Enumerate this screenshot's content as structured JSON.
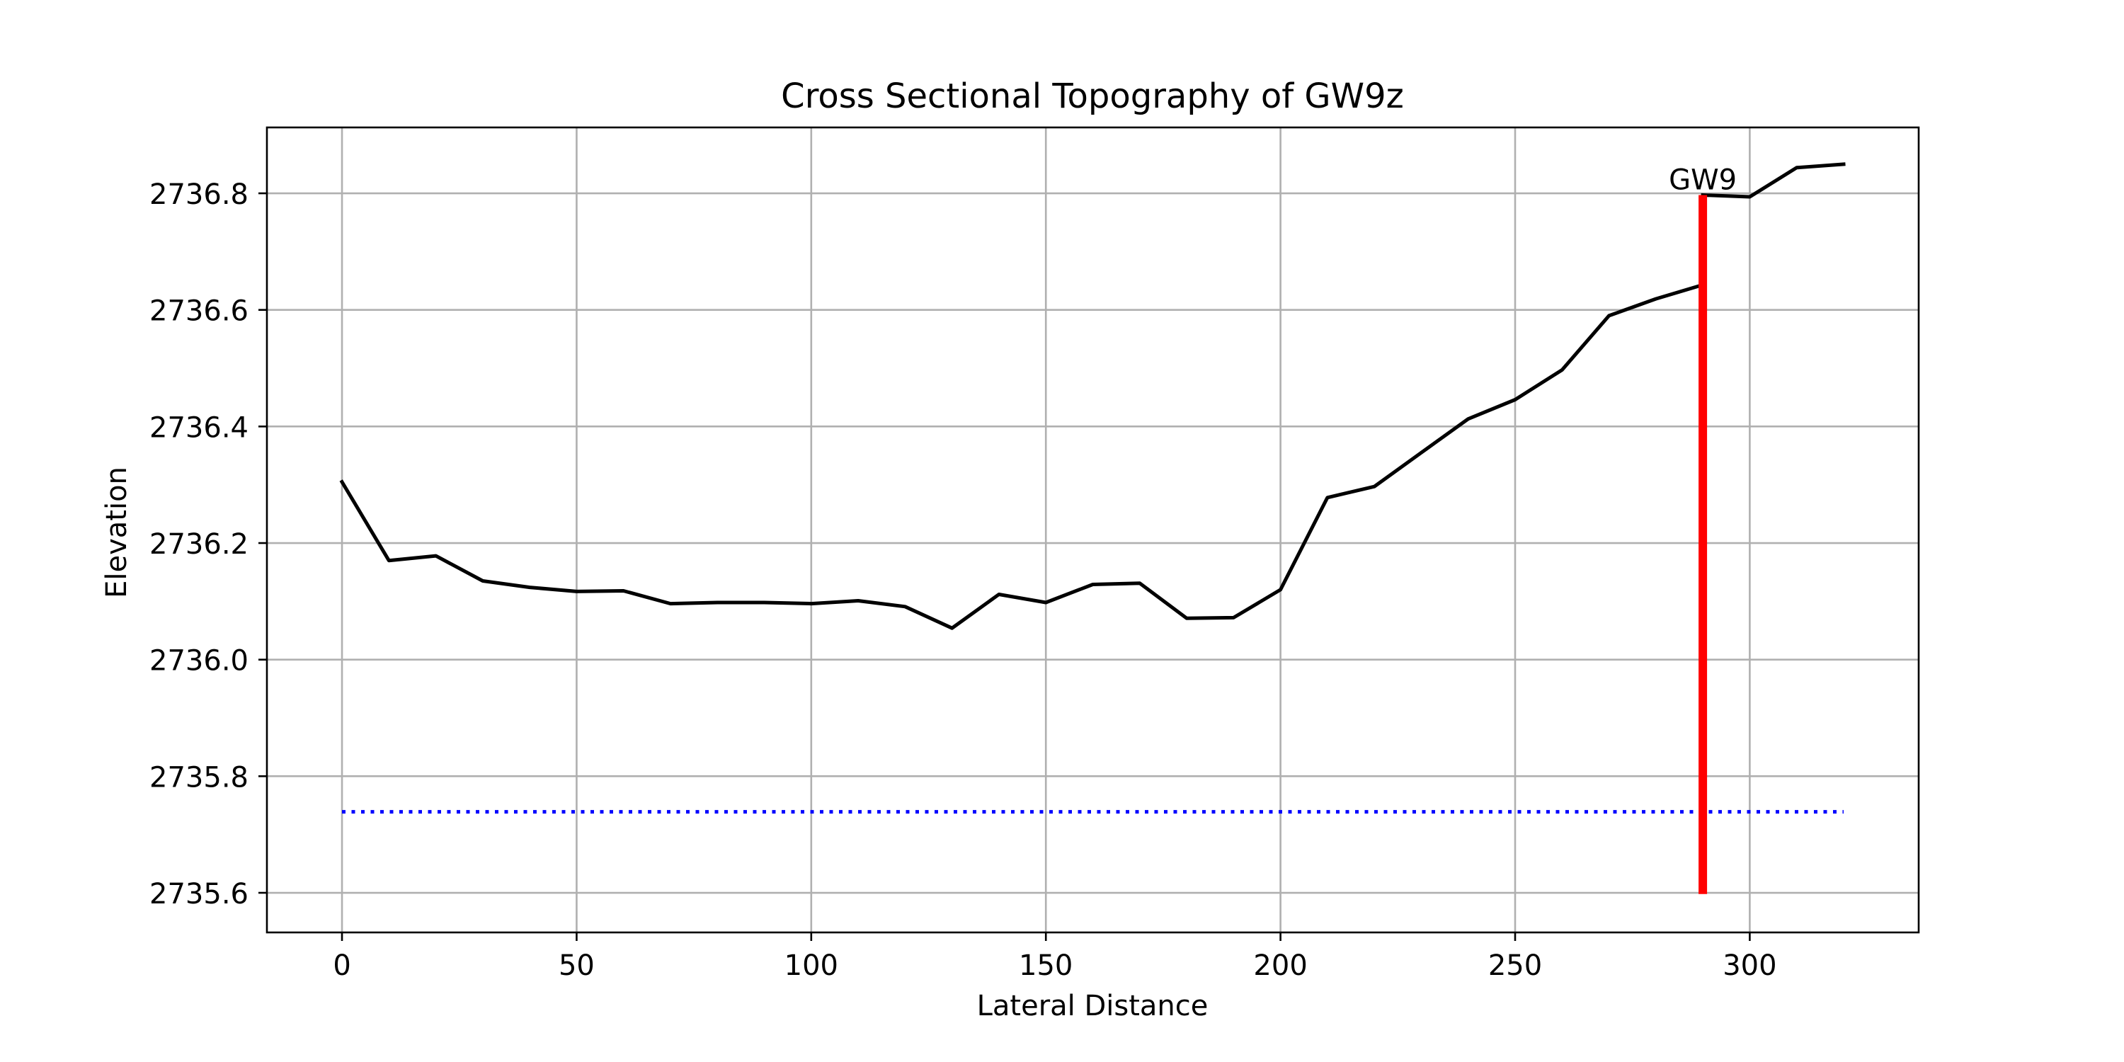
{
  "chart_data": {
    "type": "line",
    "title": "Cross Sectional Topography of GW9z",
    "xlabel": "Lateral Distance",
    "ylabel": "Elevation",
    "xlim": [
      -16,
      336
    ],
    "ylim": [
      2735.532,
      2736.913
    ],
    "x_ticks": [
      0,
      50,
      100,
      150,
      200,
      250,
      300
    ],
    "x_tick_labels": [
      "0",
      "50",
      "100",
      "150",
      "200",
      "250",
      "300"
    ],
    "y_ticks": [
      2735.6,
      2735.8,
      2736.0,
      2736.2,
      2736.4,
      2736.6,
      2736.8
    ],
    "y_tick_labels": [
      "2735.6",
      "2735.8",
      "2736.0",
      "2736.2",
      "2736.4",
      "2736.6",
      "2736.8"
    ],
    "grid": true,
    "series": [
      {
        "style": "solid",
        "color": "#000000",
        "x": [
          0,
          10,
          20,
          30,
          40,
          50,
          60,
          70,
          80,
          90,
          100,
          110,
          120,
          130,
          140,
          150,
          160,
          170,
          180,
          190,
          200,
          210,
          220,
          230,
          240,
          250,
          260,
          270,
          280,
          290
        ],
        "y": [
          2736.305,
          2736.17,
          2736.178,
          2736.135,
          2736.124,
          2736.117,
          2736.118,
          2736.096,
          2736.098,
          2736.098,
          2736.096,
          2736.101,
          2736.091,
          2736.054,
          2736.112,
          2736.098,
          2736.129,
          2736.131,
          2736.071,
          2736.072,
          2736.12,
          2736.278,
          2736.297,
          2736.355,
          2736.413,
          2736.446,
          2736.497,
          2736.59,
          2736.619,
          2736.643
        ]
      },
      {
        "style": "solid",
        "color": "#000000",
        "x": [
          290,
          300,
          310,
          320
        ],
        "y": [
          2736.797,
          2736.794,
          2736.844,
          2736.85
        ]
      },
      {
        "style": "dotted",
        "color": "#0000ff",
        "x": [
          0,
          320
        ],
        "y": [
          2735.739,
          2735.739
        ]
      },
      {
        "style": "solid",
        "color": "#ff0000",
        "x": [
          290,
          290
        ],
        "y": [
          2735.598,
          2736.797
        ]
      }
    ],
    "annotations": [
      {
        "text": "GW9",
        "x": 290,
        "y": 2736.797
      }
    ]
  }
}
